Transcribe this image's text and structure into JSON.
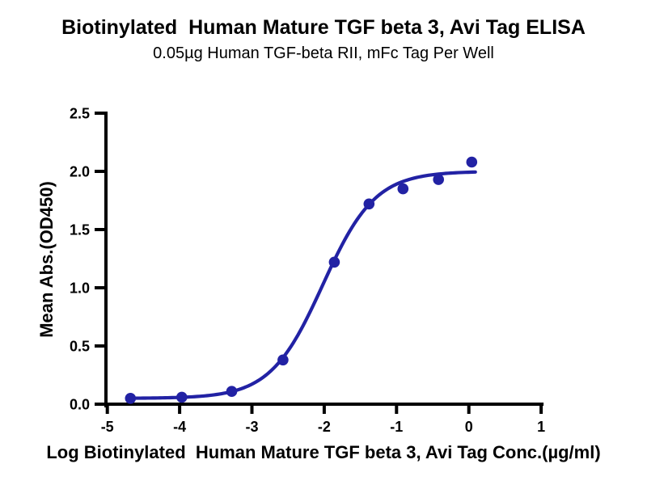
{
  "header": {
    "title": "Biotinylated  Human Mature TGF beta 3, Avi Tag ELISA",
    "subtitle": "0.05µg Human TGF-beta RII, mFc Tag Per Well"
  },
  "colors": {
    "series_blue": "#2222A4",
    "axis_black": "#000000",
    "background": "#FFFFFF"
  },
  "chart_data": {
    "type": "scatter",
    "title": "Biotinylated  Human Mature TGF beta 3, Avi Tag ELISA",
    "subtitle": "0.05µg Human TGF-beta RII, mFc Tag Per Well",
    "xlabel": "Log Biotinylated  Human Mature TGF beta 3, Avi Tag Conc.(µg/ml)",
    "ylabel": "Mean Abs.(OD450)",
    "xlim": [
      -5,
      1
    ],
    "ylim": [
      0,
      2.5
    ],
    "x_ticks": [
      "-5",
      "-4",
      "-3",
      "-2",
      "-1",
      "0",
      "1"
    ],
    "y_ticks": [
      "0.0",
      "0.5",
      "1.0",
      "1.5",
      "2.0",
      "2.5"
    ],
    "grid": false,
    "legend_position": "none",
    "series": [
      {
        "name": "Biotinylated Human Mature TGF beta 3, Avi Tag",
        "marker": "circle",
        "color": "#2222A4",
        "points": [
          {
            "x": -4.68,
            "y": 0.05
          },
          {
            "x": -3.97,
            "y": 0.06
          },
          {
            "x": -3.28,
            "y": 0.11
          },
          {
            "x": -2.57,
            "y": 0.38
          },
          {
            "x": -1.86,
            "y": 1.22
          },
          {
            "x": -1.38,
            "y": 1.72
          },
          {
            "x": -0.91,
            "y": 1.85
          },
          {
            "x": -0.42,
            "y": 1.93
          },
          {
            "x": 0.04,
            "y": 2.08
          }
        ]
      }
    ],
    "fit_curve": {
      "model": "4PL sigmoid",
      "bottom": 0.05,
      "top": 2.0,
      "logEC50": -2.02,
      "hillslope": 1.2,
      "x_start": -4.68,
      "x_end": 0.09,
      "color": "#2222A4"
    }
  }
}
